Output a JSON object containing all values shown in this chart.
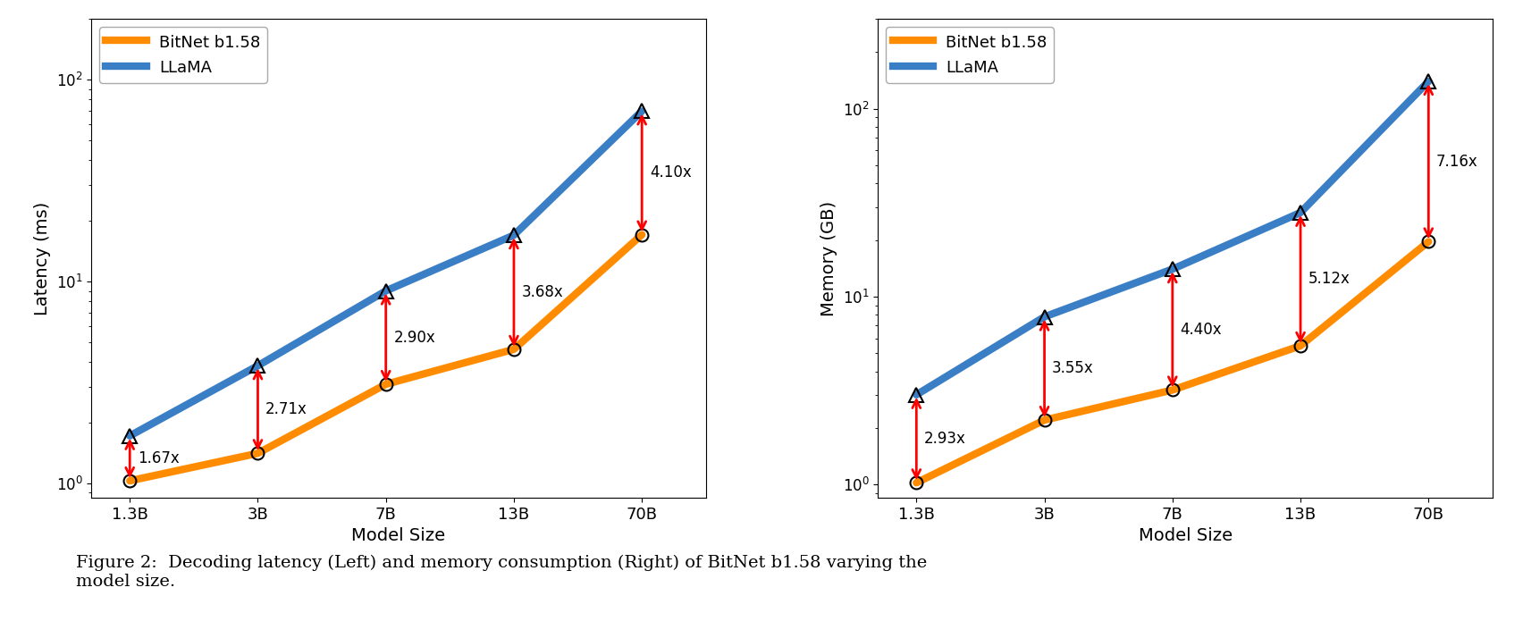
{
  "model_sizes": [
    "1.3B",
    "3B",
    "7B",
    "13B",
    "70B"
  ],
  "x_positions": [
    0,
    1,
    2,
    3,
    4
  ],
  "latency_llama": [
    1.72,
    3.83,
    9.0,
    17.0,
    70.0
  ],
  "latency_bitnet": [
    1.03,
    1.41,
    3.1,
    4.62,
    17.1
  ],
  "latency_ratios": [
    "1.67x",
    "2.71x",
    "2.90x",
    "3.68x",
    "4.10x"
  ],
  "latency_ylabel": "Latency (ms)",
  "latency_ylim": [
    0.85,
    200
  ],
  "memory_llama": [
    3.0,
    7.8,
    14.0,
    28.0,
    140.0
  ],
  "memory_bitnet": [
    1.02,
    2.2,
    3.18,
    5.47,
    19.6
  ],
  "memory_ratios": [
    "2.93x",
    "3.55x",
    "4.40x",
    "5.12x",
    "7.16x"
  ],
  "memory_ylabel": "Memory (GB)",
  "memory_ylim": [
    0.85,
    300
  ],
  "xlabel": "Model Size",
  "color_bitnet": "#FF8C00",
  "color_llama": "#3A7EC6",
  "color_arrow": "red",
  "linewidth": 6,
  "markersize_tri": 11,
  "markersize_circ": 10,
  "caption": "Figure 2:  Decoding latency (Left) and memory consumption (Right) of BitNet b1.58 varying the\nmodel size.",
  "caption_fontsize": 14
}
